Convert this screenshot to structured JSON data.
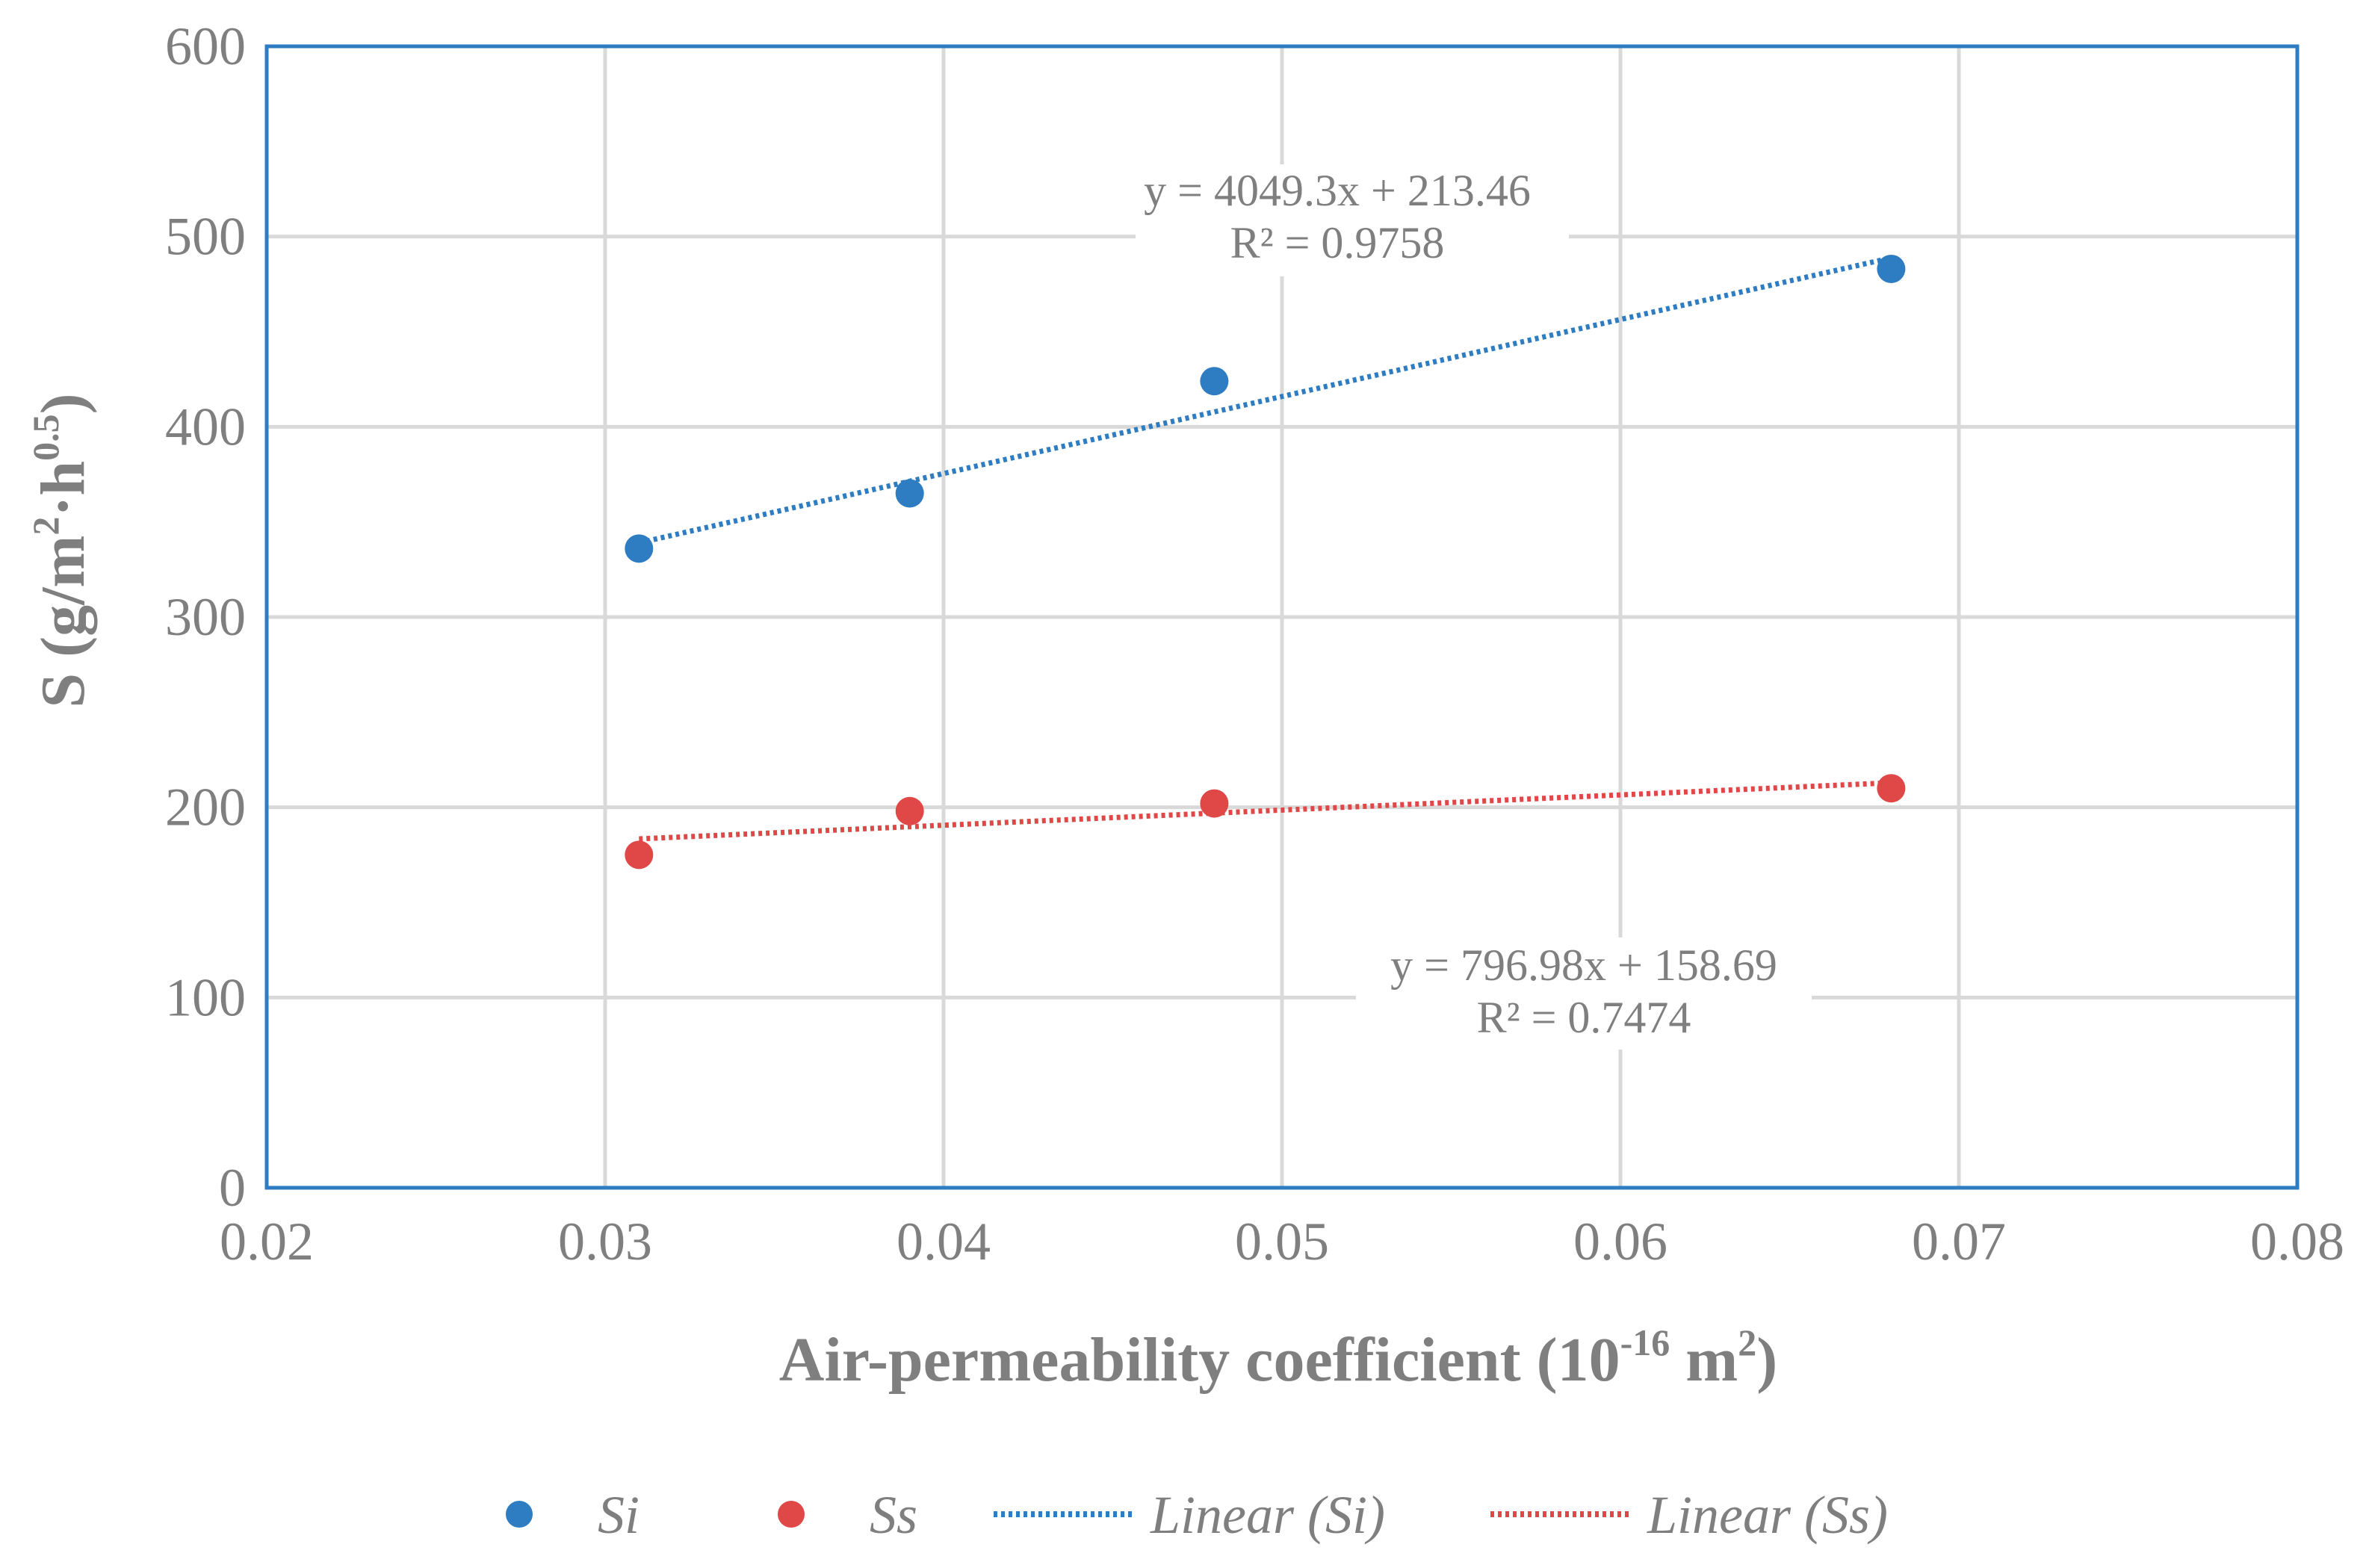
{
  "chart_data": {
    "type": "scatter",
    "title": "",
    "xlabel": "Air-permeability coefficient (10^-16 m^2)",
    "xlabel_parts": {
      "prefix": "Air-permeability  coefficient (10",
      "sup1": "-16",
      "mid": " m",
      "sup2": "2",
      "suffix": ")"
    },
    "ylabel": "S (g/m^2·h^0.5)",
    "ylabel_parts": {
      "prefix": "S (g/m",
      "sup1": "2",
      "mid": "·h",
      "sup2": "0.5",
      "suffix": ")"
    },
    "xlim": [
      0.02,
      0.08
    ],
    "ylim": [
      0,
      600
    ],
    "xticks": [
      0.02,
      0.03,
      0.04,
      0.05,
      0.06,
      0.07,
      0.08
    ],
    "xtick_labels": [
      "0.02",
      "0.03",
      "0.04",
      "0.05",
      "0.06",
      "0.07",
      "0.08"
    ],
    "yticks": [
      0,
      100,
      200,
      300,
      400,
      500,
      600
    ],
    "ytick_labels": [
      "0",
      "100",
      "200",
      "300",
      "400",
      "500",
      "600"
    ],
    "grid": true,
    "legend_position": "bottom",
    "series": [
      {
        "name": "Si",
        "color": "#2e7cc1",
        "x": [
          0.031,
          0.039,
          0.048,
          0.068
        ],
        "y": [
          336,
          365,
          424,
          483
        ],
        "trendline": {
          "name": "Linear (Si)",
          "slope": 4049.3,
          "intercept": 213.46,
          "equation": "y = 4049.3x + 213.46",
          "r2": "R² = 0.9758"
        }
      },
      {
        "name": "Ss",
        "color": "#e04848",
        "x": [
          0.031,
          0.039,
          0.048,
          0.068
        ],
        "y": [
          175,
          198,
          202,
          210
        ],
        "trendline": {
          "name": "Linear (Ss)",
          "slope": 796.98,
          "intercept": 158.69,
          "equation": "y = 796.98x + 158.69",
          "r2": "R² = 0.7474"
        }
      }
    ]
  }
}
